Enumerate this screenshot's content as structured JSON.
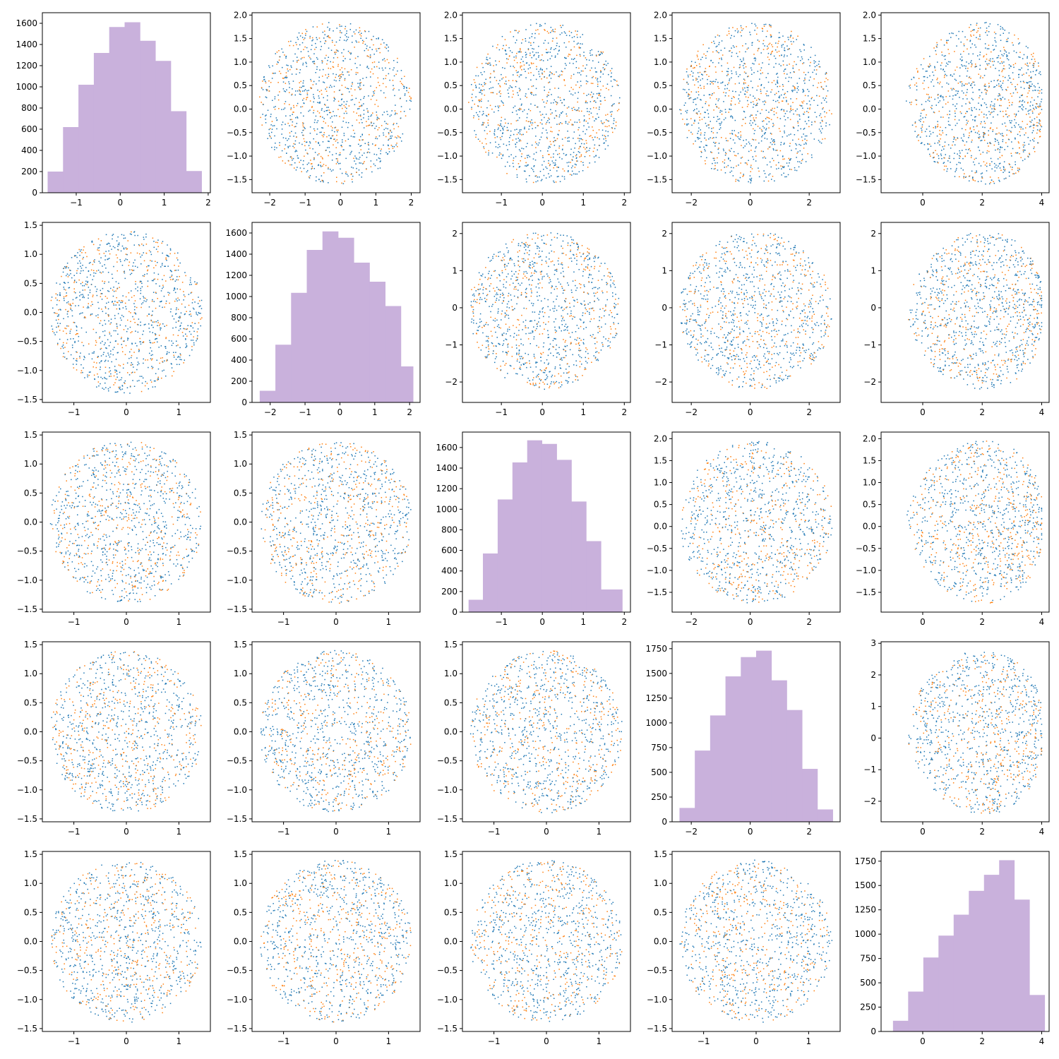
{
  "figure": {
    "layout": "5x5 pair plot"
  },
  "colors": {
    "series_a": "#1f77b4",
    "series_b": "#ff7f0e",
    "histogram": "#c9b1dc"
  },
  "chart_data": [
    {
      "panel": "1-1",
      "type": "bar",
      "bin_edges": [
        -1.65,
        -1.3,
        -0.95,
        -0.6,
        -0.25,
        0.1,
        0.45,
        0.8,
        1.15,
        1.5,
        1.85
      ],
      "values": [
        200,
        620,
        1020,
        1320,
        1565,
        1610,
        1435,
        1245,
        770,
        205
      ],
      "xlim": [
        -1.77,
        2.05
      ],
      "ylim": [
        0,
        1700
      ],
      "xticks": [
        -1,
        0,
        1,
        2
      ],
      "yticks": [
        0,
        200,
        400,
        600,
        800,
        1000,
        1200,
        1400,
        1600
      ]
    },
    {
      "panel": "1-2",
      "type": "scatter",
      "x_range": [
        -2.3,
        2.0
      ],
      "y_range": [
        -1.6,
        1.85
      ],
      "xlim": [
        -2.5,
        2.25
      ],
      "ylim": [
        -1.78,
        2.05
      ],
      "xticks": [
        -2,
        -1,
        0,
        1,
        2
      ],
      "yticks": [
        -1.5,
        -1.0,
        -0.5,
        0.0,
        0.5,
        1.0,
        1.5,
        2.0
      ],
      "shape": "disc"
    },
    {
      "panel": "1-3",
      "type": "scatter",
      "x_range": [
        -1.8,
        1.9
      ],
      "y_range": [
        -1.6,
        1.85
      ],
      "xlim": [
        -1.95,
        2.15
      ],
      "ylim": [
        -1.78,
        2.05
      ],
      "xticks": [
        -1,
        0,
        1,
        2
      ],
      "yticks": [
        -1.5,
        -1.0,
        -0.5,
        0.0,
        0.5,
        1.0,
        1.5,
        2.0
      ],
      "shape": "disc"
    },
    {
      "panel": "1-4",
      "type": "scatter",
      "x_range": [
        -2.4,
        2.8
      ],
      "y_range": [
        -1.6,
        1.85
      ],
      "xlim": [
        -2.65,
        3.05
      ],
      "ylim": [
        -1.78,
        2.05
      ],
      "xticks": [
        -2,
        0,
        2
      ],
      "yticks": [
        -1.5,
        -1.0,
        -0.5,
        0.0,
        0.5,
        1.0,
        1.5,
        2.0
      ],
      "shape": "disc"
    },
    {
      "panel": "1-5",
      "type": "scatter",
      "x_range": [
        -1.1,
        4.0
      ],
      "y_range": [
        -1.6,
        1.85
      ],
      "xlim": [
        -1.4,
        4.25
      ],
      "ylim": [
        -1.78,
        2.05
      ],
      "xticks": [
        0,
        2,
        4
      ],
      "yticks": [
        -1.5,
        -1.0,
        -0.5,
        0.0,
        0.5,
        1.0,
        1.5,
        2.0
      ],
      "shape": "tilt"
    },
    {
      "panel": "2-1",
      "type": "scatter",
      "x_range": [
        -1.45,
        1.45
      ],
      "y_range": [
        -1.4,
        1.4
      ],
      "xlim": [
        -1.6,
        1.6
      ],
      "ylim": [
        -1.55,
        1.55
      ],
      "xticks": [
        -1,
        0,
        1
      ],
      "yticks": [
        -1.5,
        -1.0,
        -0.5,
        0.0,
        0.5,
        1.0,
        1.5
      ],
      "shape": "disc"
    },
    {
      "panel": "2-2",
      "type": "bar",
      "bin_edges": [
        -2.3,
        -1.85,
        -1.4,
        -0.95,
        -0.5,
        -0.05,
        0.4,
        0.85,
        1.3,
        1.75,
        2.1
      ],
      "values": [
        110,
        545,
        1035,
        1440,
        1615,
        1555,
        1320,
        1140,
        910,
        340
      ],
      "xlim": [
        -2.52,
        2.3
      ],
      "ylim": [
        0,
        1700
      ],
      "xticks": [
        -2,
        -1,
        0,
        1,
        2
      ],
      "yticks": [
        0,
        200,
        400,
        600,
        800,
        1000,
        1200,
        1400,
        1600
      ]
    },
    {
      "panel": "2-3",
      "type": "scatter",
      "x_range": [
        -1.8,
        1.9
      ],
      "y_range": [
        -2.2,
        2.05
      ],
      "xlim": [
        -1.95,
        2.15
      ],
      "ylim": [
        -2.55,
        2.3
      ],
      "xticks": [
        -1,
        0,
        1,
        2
      ],
      "yticks": [
        -2,
        -1,
        0,
        1,
        2
      ],
      "shape": "disc"
    },
    {
      "panel": "2-4",
      "type": "scatter",
      "x_range": [
        -2.4,
        2.8
      ],
      "y_range": [
        -2.2,
        2.05
      ],
      "xlim": [
        -2.65,
        3.05
      ],
      "ylim": [
        -2.55,
        2.3
      ],
      "xticks": [
        -2,
        0,
        2
      ],
      "yticks": [
        -2,
        -1,
        0,
        1,
        2
      ],
      "shape": "disc"
    },
    {
      "panel": "2-5",
      "type": "scatter",
      "x_range": [
        -1.1,
        4.0
      ],
      "y_range": [
        -2.2,
        2.05
      ],
      "xlim": [
        -1.4,
        4.25
      ],
      "ylim": [
        -2.55,
        2.3
      ],
      "xticks": [
        0,
        2,
        4
      ],
      "yticks": [
        -2,
        -1,
        0,
        1,
        2
      ],
      "shape": "tilt"
    },
    {
      "panel": "3-1",
      "type": "scatter",
      "x_range": [
        -1.45,
        1.45
      ],
      "y_range": [
        -1.4,
        1.4
      ],
      "xlim": [
        -1.6,
        1.6
      ],
      "ylim": [
        -1.55,
        1.55
      ],
      "xticks": [
        -1,
        0,
        1
      ],
      "yticks": [
        -1.5,
        -1.0,
        -0.5,
        0.0,
        0.5,
        1.0,
        1.5
      ],
      "shape": "disc"
    },
    {
      "panel": "3-2",
      "type": "scatter",
      "x_range": [
        -1.45,
        1.45
      ],
      "y_range": [
        -1.4,
        1.4
      ],
      "xlim": [
        -1.6,
        1.6
      ],
      "ylim": [
        -1.55,
        1.55
      ],
      "xticks": [
        -1,
        0,
        1
      ],
      "yticks": [
        -1.5,
        -1.0,
        -0.5,
        0.0,
        0.5,
        1.0,
        1.5
      ],
      "shape": "disc"
    },
    {
      "panel": "3-3",
      "type": "bar",
      "bin_edges": [
        -1.8,
        -1.45,
        -1.09,
        -0.73,
        -0.37,
        -0.01,
        0.35,
        0.71,
        1.07,
        1.43,
        1.95
      ],
      "values": [
        120,
        570,
        1095,
        1455,
        1670,
        1635,
        1480,
        1075,
        690,
        220
      ],
      "xlim": [
        -1.95,
        2.15
      ],
      "ylim": [
        0,
        1750
      ],
      "xticks": [
        -1,
        0,
        1,
        2
      ],
      "yticks": [
        0,
        200,
        400,
        600,
        800,
        1000,
        1200,
        1400,
        1600
      ]
    },
    {
      "panel": "3-4",
      "type": "scatter",
      "x_range": [
        -2.4,
        2.8
      ],
      "y_range": [
        -1.75,
        1.95
      ],
      "xlim": [
        -2.65,
        3.05
      ],
      "ylim": [
        -1.95,
        2.15
      ],
      "xticks": [
        -2,
        0,
        2
      ],
      "yticks": [
        -1.5,
        -1.0,
        -0.5,
        0.0,
        0.5,
        1.0,
        1.5,
        2.0
      ],
      "shape": "disc"
    },
    {
      "panel": "3-5",
      "type": "scatter",
      "x_range": [
        -1.1,
        4.0
      ],
      "y_range": [
        -1.75,
        1.95
      ],
      "xlim": [
        -1.4,
        4.25
      ],
      "ylim": [
        -1.95,
        2.15
      ],
      "xticks": [
        0,
        2,
        4
      ],
      "yticks": [
        -1.5,
        -1.0,
        -0.5,
        0.0,
        0.5,
        1.0,
        1.5,
        2.0
      ],
      "shape": "tilt"
    },
    {
      "panel": "4-1",
      "type": "scatter",
      "x_range": [
        -1.45,
        1.45
      ],
      "y_range": [
        -1.4,
        1.4
      ],
      "xlim": [
        -1.6,
        1.6
      ],
      "ylim": [
        -1.55,
        1.55
      ],
      "xticks": [
        -1,
        0,
        1
      ],
      "yticks": [
        -1.5,
        -1.0,
        -0.5,
        0.0,
        0.5,
        1.0,
        1.5
      ],
      "shape": "disc"
    },
    {
      "panel": "4-2",
      "type": "scatter",
      "x_range": [
        -1.45,
        1.45
      ],
      "y_range": [
        -1.4,
        1.4
      ],
      "xlim": [
        -1.6,
        1.6
      ],
      "ylim": [
        -1.55,
        1.55
      ],
      "xticks": [
        -1,
        0,
        1
      ],
      "yticks": [
        -1.5,
        -1.0,
        -0.5,
        0.0,
        0.5,
        1.0,
        1.5
      ],
      "shape": "disc"
    },
    {
      "panel": "4-3",
      "type": "scatter",
      "x_range": [
        -1.45,
        1.45
      ],
      "y_range": [
        -1.4,
        1.4
      ],
      "xlim": [
        -1.6,
        1.6
      ],
      "ylim": [
        -1.55,
        1.55
      ],
      "xticks": [
        -1,
        0,
        1
      ],
      "yticks": [
        -1.5,
        -1.0,
        -0.5,
        0.0,
        0.5,
        1.0,
        1.5
      ],
      "shape": "disc"
    },
    {
      "panel": "4-4",
      "type": "bar",
      "bin_edges": [
        -2.4,
        -1.88,
        -1.36,
        -0.84,
        -0.32,
        0.2,
        0.72,
        1.24,
        1.76,
        2.28,
        2.8
      ],
      "values": [
        140,
        720,
        1075,
        1470,
        1665,
        1730,
        1430,
        1130,
        535,
        125
      ],
      "xlim": [
        -2.65,
        3.05
      ],
      "ylim": [
        0,
        1820
      ],
      "xticks": [
        -2,
        0,
        2
      ],
      "yticks": [
        0,
        250,
        500,
        750,
        1000,
        1250,
        1500,
        1750
      ]
    },
    {
      "panel": "4-5",
      "type": "scatter",
      "x_range": [
        -1.1,
        4.0
      ],
      "y_range": [
        -2.4,
        2.8
      ],
      "xlim": [
        -1.4,
        4.25
      ],
      "ylim": [
        -2.65,
        3.05
      ],
      "xticks": [
        0,
        2,
        4
      ],
      "yticks": [
        -2,
        -1,
        0,
        1,
        2,
        3
      ],
      "shape": "tilt"
    },
    {
      "panel": "5-1",
      "type": "scatter",
      "x_range": [
        -1.45,
        1.45
      ],
      "y_range": [
        -1.4,
        1.4
      ],
      "xlim": [
        -1.6,
        1.6
      ],
      "ylim": [
        -1.55,
        1.55
      ],
      "xticks": [
        -1,
        0,
        1
      ],
      "yticks": [
        -1.5,
        -1.0,
        -0.5,
        0.0,
        0.5,
        1.0,
        1.5
      ],
      "shape": "disc"
    },
    {
      "panel": "5-2",
      "type": "scatter",
      "x_range": [
        -1.45,
        1.45
      ],
      "y_range": [
        -1.4,
        1.4
      ],
      "xlim": [
        -1.6,
        1.6
      ],
      "ylim": [
        -1.55,
        1.55
      ],
      "xticks": [
        -1,
        0,
        1
      ],
      "yticks": [
        -1.5,
        -1.0,
        -0.5,
        0.0,
        0.5,
        1.0,
        1.5
      ],
      "shape": "disc"
    },
    {
      "panel": "5-3",
      "type": "scatter",
      "x_range": [
        -1.45,
        1.45
      ],
      "y_range": [
        -1.4,
        1.4
      ],
      "xlim": [
        -1.6,
        1.6
      ],
      "ylim": [
        -1.55,
        1.55
      ],
      "xticks": [
        -1,
        0,
        1
      ],
      "yticks": [
        -1.5,
        -1.0,
        -0.5,
        0.0,
        0.5,
        1.0,
        1.5
      ],
      "shape": "disc"
    },
    {
      "panel": "5-4",
      "type": "scatter",
      "x_range": [
        -1.45,
        1.45
      ],
      "y_range": [
        -1.4,
        1.4
      ],
      "xlim": [
        -1.6,
        1.6
      ],
      "ylim": [
        -1.55,
        1.55
      ],
      "xticks": [
        -1,
        0,
        1
      ],
      "yticks": [
        -1.5,
        -1.0,
        -0.5,
        0.0,
        0.5,
        1.0,
        1.5
      ],
      "shape": "disc"
    },
    {
      "panel": "5-5",
      "type": "bar",
      "bin_edges": [
        -1.0,
        -0.49,
        0.02,
        0.53,
        1.04,
        1.55,
        2.06,
        2.57,
        3.08,
        3.59,
        4.1
      ],
      "values": [
        110,
        410,
        760,
        985,
        1200,
        1445,
        1610,
        1760,
        1355,
        375
      ],
      "xlim": [
        -1.4,
        4.25
      ],
      "ylim": [
        0,
        1850
      ],
      "xticks": [
        0,
        2,
        4
      ],
      "yticks": [
        0,
        250,
        500,
        750,
        1000,
        1250,
        1500,
        1750
      ]
    }
  ]
}
